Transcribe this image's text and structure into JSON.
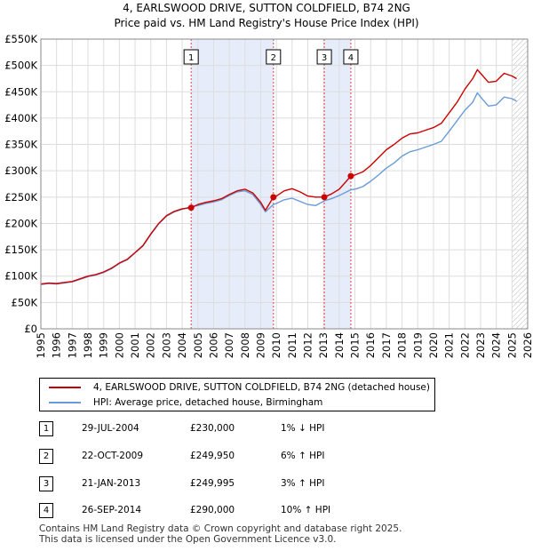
{
  "chart_data": {
    "type": "line",
    "title": "4, EARLSWOOD DRIVE, SUTTON COLDFIELD, B74 2NG",
    "subtitle": "Price paid vs. HM Land Registry's House Price Index (HPI)",
    "xlim": [
      1995,
      2026
    ],
    "ylim": [
      0,
      550000
    ],
    "x_ticks": [
      1995,
      1996,
      1997,
      1998,
      1999,
      2000,
      2001,
      2002,
      2003,
      2004,
      2005,
      2006,
      2007,
      2008,
      2009,
      2010,
      2011,
      2012,
      2013,
      2014,
      2015,
      2016,
      2017,
      2018,
      2019,
      2020,
      2021,
      2022,
      2023,
      2024,
      2025,
      2026
    ],
    "y_ticks": [
      {
        "value": 0,
        "label": "£0"
      },
      {
        "value": 50000,
        "label": "£50K"
      },
      {
        "value": 100000,
        "label": "£100K"
      },
      {
        "value": 150000,
        "label": "£150K"
      },
      {
        "value": 200000,
        "label": "£200K"
      },
      {
        "value": 250000,
        "label": "£250K"
      },
      {
        "value": 300000,
        "label": "£300K"
      },
      {
        "value": 350000,
        "label": "£350K"
      },
      {
        "value": 400000,
        "label": "£400K"
      },
      {
        "value": 450000,
        "label": "£450K"
      },
      {
        "value": 500000,
        "label": "£500K"
      },
      {
        "value": 550000,
        "label": "£550K"
      }
    ],
    "grid": true,
    "shaded_periods": [
      [
        2004.57,
        2009.81
      ],
      [
        2013.05,
        2014.74
      ]
    ],
    "forecast_start": 2025.0,
    "series": [
      {
        "name": "4, EARLSWOOD DRIVE, SUTTON COLDFIELD, B74 2NG (detached house)",
        "color": "#cc0000",
        "x": [
          1995,
          1995.5,
          1996,
          1996.5,
          1997,
          1997.5,
          1998,
          1998.5,
          1999,
          1999.5,
          2000,
          2000.5,
          2001,
          2001.5,
          2002,
          2002.5,
          2003,
          2003.5,
          2004,
          2004.57,
          2005,
          2005.5,
          2006,
          2006.5,
          2007,
          2007.5,
          2008,
          2008.5,
          2009,
          2009.3,
          2009.81,
          2010,
          2010.5,
          2011,
          2011.5,
          2012,
          2012.5,
          2013.05,
          2013.5,
          2014,
          2014.74,
          2015,
          2015.5,
          2016,
          2016.5,
          2017,
          2017.5,
          2018,
          2018.5,
          2019,
          2019.5,
          2020,
          2020.5,
          2021,
          2021.5,
          2022,
          2022.5,
          2022.8,
          2023,
          2023.5,
          2024,
          2024.5,
          2025,
          2025.3
        ],
        "y": [
          85000,
          87000,
          86000,
          88000,
          90000,
          95000,
          100000,
          103000,
          108000,
          115000,
          125000,
          132000,
          145000,
          158000,
          180000,
          200000,
          215000,
          223000,
          228000,
          230000,
          236000,
          240000,
          243000,
          247000,
          255000,
          262000,
          265000,
          258000,
          240000,
          225000,
          249950,
          252000,
          262000,
          266000,
          260000,
          252000,
          250000,
          249995,
          256000,
          265000,
          290000,
          292000,
          298000,
          310000,
          325000,
          340000,
          350000,
          362000,
          370000,
          372000,
          377000,
          382000,
          390000,
          410000,
          430000,
          455000,
          475000,
          492000,
          485000,
          468000,
          470000,
          485000,
          480000,
          475000
        ]
      },
      {
        "name": "HPI: Average price, detached house, Birmingham",
        "color": "#6a9bd8",
        "x": [
          1995,
          1995.5,
          1996,
          1996.5,
          1997,
          1997.5,
          1998,
          1998.5,
          1999,
          1999.5,
          2000,
          2000.5,
          2001,
          2001.5,
          2002,
          2002.5,
          2003,
          2003.5,
          2004,
          2004.57,
          2005,
          2005.5,
          2006,
          2006.5,
          2007,
          2007.5,
          2008,
          2008.5,
          2009,
          2009.3,
          2009.81,
          2010,
          2010.5,
          2011,
          2011.5,
          2012,
          2012.5,
          2013.05,
          2013.5,
          2014,
          2014.74,
          2015,
          2015.5,
          2016,
          2016.5,
          2017,
          2017.5,
          2018,
          2018.5,
          2019,
          2019.5,
          2020,
          2020.5,
          2021,
          2021.5,
          2022,
          2022.5,
          2022.8,
          2023,
          2023.5,
          2024,
          2024.5,
          2025,
          2025.3
        ],
        "y": [
          84000,
          86000,
          85000,
          87000,
          89000,
          94000,
          99000,
          102000,
          107000,
          114000,
          124000,
          131000,
          144000,
          157000,
          179000,
          199000,
          214000,
          222000,
          227000,
          232000,
          234000,
          238000,
          241000,
          245000,
          253000,
          260000,
          262000,
          255000,
          236000,
          222000,
          236000,
          238000,
          245000,
          248000,
          242000,
          236000,
          234000,
          243000,
          247000,
          253000,
          264000,
          265000,
          270000,
          280000,
          292000,
          305000,
          315000,
          328000,
          336000,
          340000,
          345000,
          350000,
          356000,
          375000,
          395000,
          415000,
          430000,
          448000,
          440000,
          423000,
          425000,
          440000,
          437000,
          432000
        ]
      }
    ],
    "sales": [
      {
        "id": "1",
        "x": 2004.57,
        "y": 230000,
        "date": "29-JUL-2004",
        "price": "£230,000",
        "hpi": "1% ↓ HPI"
      },
      {
        "id": "2",
        "x": 2009.81,
        "y": 249950,
        "date": "22-OCT-2009",
        "price": "£249,950",
        "hpi": "6% ↑ HPI"
      },
      {
        "id": "3",
        "x": 2013.05,
        "y": 249995,
        "date": "21-JAN-2013",
        "price": "£249,995",
        "hpi": "3% ↑ HPI"
      },
      {
        "id": "4",
        "x": 2014.74,
        "y": 290000,
        "date": "26-SEP-2014",
        "price": "£290,000",
        "hpi": "10% ↑ HPI"
      }
    ]
  },
  "legend": {
    "series_property": "4, EARLSWOOD DRIVE, SUTTON COLDFIELD, B74 2NG (detached house)",
    "series_hpi": "HPI: Average price, detached house, Birmingham"
  },
  "table": [
    {
      "id": "1",
      "date": "29-JUL-2004",
      "price": "£230,000",
      "hpi": "1% ↓ HPI"
    },
    {
      "id": "2",
      "date": "22-OCT-2009",
      "price": "£249,950",
      "hpi": "6% ↑ HPI"
    },
    {
      "id": "3",
      "date": "21-JAN-2013",
      "price": "£249,995",
      "hpi": "3% ↑ HPI"
    },
    {
      "id": "4",
      "date": "26-SEP-2014",
      "price": "£290,000",
      "hpi": "10% ↑ HPI"
    }
  ],
  "footer": {
    "line1": "Contains HM Land Registry data © Crown copyright and database right 2025.",
    "line2": "This data is licensed under the Open Government Licence v3.0."
  },
  "colors": {
    "property": "#cc0000",
    "hpi": "#6a9bd8",
    "shade": "#e6ecfa",
    "grid": "#dddddd"
  }
}
